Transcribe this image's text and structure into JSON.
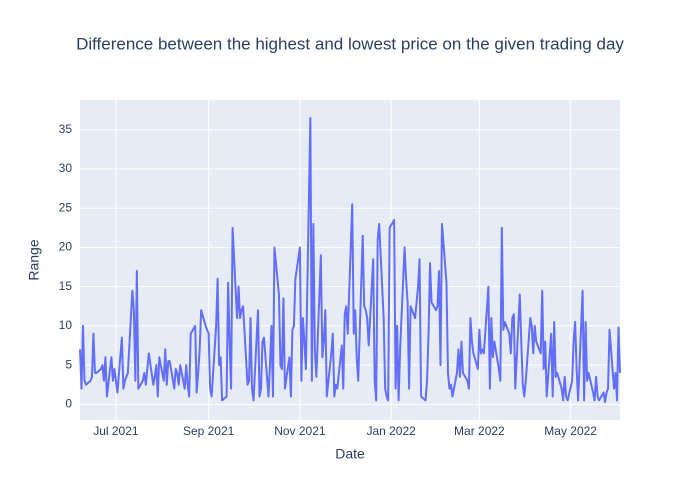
{
  "chart_data": {
    "type": "line",
    "title": "Difference between the highest and lowest price on the given trading day",
    "x_label": "Date",
    "y_label": "Range",
    "color": "#636efa",
    "grid": true,
    "xlim": [
      "2021-06-07",
      "2022-06-03"
    ],
    "xticks": [
      {
        "value": "2021-07-01",
        "label": "Jul 2021"
      },
      {
        "value": "2021-09-01",
        "label": "Sep 2021"
      },
      {
        "value": "2021-11-01",
        "label": "Nov 2021"
      },
      {
        "value": "2022-01-01",
        "label": "Jan 2022"
      },
      {
        "value": "2022-03-01",
        "label": "Mar 2022"
      },
      {
        "value": "2022-05-01",
        "label": "May 2022"
      }
    ],
    "ylim": [
      -2,
      38.8
    ],
    "yticks": [
      0,
      5,
      10,
      15,
      20,
      25,
      30,
      35
    ],
    "x": [
      "2021-06-07",
      "2021-06-08",
      "2021-06-09",
      "2021-06-10",
      "2021-06-11",
      "2021-06-14",
      "2021-06-15",
      "2021-06-16",
      "2021-06-17",
      "2021-06-18",
      "2021-06-21",
      "2021-06-22",
      "2021-06-23",
      "2021-06-24",
      "2021-06-25",
      "2021-06-28",
      "2021-06-29",
      "2021-06-30",
      "2021-07-01",
      "2021-07-02",
      "2021-07-05",
      "2021-07-06",
      "2021-07-07",
      "2021-07-08",
      "2021-07-09",
      "2021-07-12",
      "2021-07-13",
      "2021-07-14",
      "2021-07-15",
      "2021-07-16",
      "2021-07-19",
      "2021-07-20",
      "2021-07-21",
      "2021-07-22",
      "2021-07-23",
      "2021-07-26",
      "2021-07-27",
      "2021-07-28",
      "2021-07-29",
      "2021-07-30",
      "2021-08-02",
      "2021-08-03",
      "2021-08-04",
      "2021-08-05",
      "2021-08-06",
      "2021-08-09",
      "2021-08-10",
      "2021-08-11",
      "2021-08-12",
      "2021-08-13",
      "2021-08-16",
      "2021-08-17",
      "2021-08-18",
      "2021-08-19",
      "2021-08-20",
      "2021-08-23",
      "2021-08-24",
      "2021-08-25",
      "2021-08-26",
      "2021-08-27",
      "2021-08-30",
      "2021-08-31",
      "2021-09-01",
      "2021-09-02",
      "2021-09-03",
      "2021-09-06",
      "2021-09-07",
      "2021-09-08",
      "2021-09-09",
      "2021-09-10",
      "2021-09-13",
      "2021-09-14",
      "2021-09-15",
      "2021-09-16",
      "2021-09-17",
      "2021-09-20",
      "2021-09-21",
      "2021-09-22",
      "2021-09-23",
      "2021-09-24",
      "2021-09-27",
      "2021-09-28",
      "2021-09-29",
      "2021-09-30",
      "2021-10-01",
      "2021-10-04",
      "2021-10-05",
      "2021-10-06",
      "2021-10-07",
      "2021-10-08",
      "2021-10-11",
      "2021-10-12",
      "2021-10-13",
      "2021-10-14",
      "2021-10-15",
      "2021-10-18",
      "2021-10-19",
      "2021-10-20",
      "2021-10-21",
      "2021-10-22",
      "2021-10-25",
      "2021-10-26",
      "2021-10-27",
      "2021-10-28",
      "2021-10-29",
      "2021-11-01",
      "2021-11-02",
      "2021-11-03",
      "2021-11-04",
      "2021-11-05",
      "2021-11-08",
      "2021-11-09",
      "2021-11-10",
      "2021-11-11",
      "2021-11-12",
      "2021-11-15",
      "2021-11-16",
      "2021-11-17",
      "2021-11-18",
      "2021-11-19",
      "2021-11-22",
      "2021-11-23",
      "2021-11-24",
      "2021-11-25",
      "2021-11-26",
      "2021-11-29",
      "2021-11-30",
      "2021-12-01",
      "2021-12-02",
      "2021-12-03",
      "2021-12-06",
      "2021-12-07",
      "2021-12-08",
      "2021-12-09",
      "2021-12-10",
      "2021-12-13",
      "2021-12-14",
      "2021-12-15",
      "2021-12-16",
      "2021-12-17",
      "2021-12-20",
      "2021-12-21",
      "2021-12-22",
      "2021-12-23",
      "2021-12-24",
      "2021-12-27",
      "2021-12-28",
      "2021-12-29",
      "2021-12-30",
      "2021-12-31",
      "2022-01-03",
      "2022-01-04",
      "2022-01-05",
      "2022-01-06",
      "2022-01-07",
      "2022-01-10",
      "2022-01-11",
      "2022-01-12",
      "2022-01-13",
      "2022-01-14",
      "2022-01-17",
      "2022-01-18",
      "2022-01-19",
      "2022-01-20",
      "2022-01-21",
      "2022-01-24",
      "2022-01-25",
      "2022-01-26",
      "2022-01-27",
      "2022-01-28",
      "2022-01-31",
      "2022-02-01",
      "2022-02-02",
      "2022-02-03",
      "2022-02-04",
      "2022-02-07",
      "2022-02-08",
      "2022-02-09",
      "2022-02-10",
      "2022-02-11",
      "2022-02-14",
      "2022-02-15",
      "2022-02-16",
      "2022-02-17",
      "2022-02-18",
      "2022-02-21",
      "2022-02-22",
      "2022-02-23",
      "2022-02-24",
      "2022-02-25",
      "2022-02-28",
      "2022-03-01",
      "2022-03-02",
      "2022-03-03",
      "2022-03-04",
      "2022-03-07",
      "2022-03-08",
      "2022-03-09",
      "2022-03-10",
      "2022-03-11",
      "2022-03-14",
      "2022-03-15",
      "2022-03-16",
      "2022-03-17",
      "2022-03-18",
      "2022-03-21",
      "2022-03-22",
      "2022-03-23",
      "2022-03-24",
      "2022-03-25",
      "2022-03-28",
      "2022-03-29",
      "2022-03-30",
      "2022-03-31",
      "2022-04-01",
      "2022-04-04",
      "2022-04-05",
      "2022-04-06",
      "2022-04-07",
      "2022-04-08",
      "2022-04-11",
      "2022-04-12",
      "2022-04-13",
      "2022-04-14",
      "2022-04-15",
      "2022-04-18",
      "2022-04-19",
      "2022-04-20",
      "2022-04-21",
      "2022-04-22",
      "2022-04-25",
      "2022-04-26",
      "2022-04-27",
      "2022-04-28",
      "2022-04-29",
      "2022-05-02",
      "2022-05-03",
      "2022-05-04",
      "2022-05-05",
      "2022-05-06",
      "2022-05-09",
      "2022-05-10",
      "2022-05-11",
      "2022-05-12",
      "2022-05-13",
      "2022-05-16",
      "2022-05-17",
      "2022-05-18",
      "2022-05-19",
      "2022-05-20",
      "2022-05-23",
      "2022-05-24",
      "2022-05-25",
      "2022-05-26",
      "2022-05-27",
      "2022-05-30",
      "2022-05-31",
      "2022-06-01",
      "2022-06-02",
      "2022-06-03"
    ],
    "values": [
      7,
      2,
      10,
      3,
      2.5,
      3,
      3.5,
      9,
      4,
      4,
      4.5,
      5,
      3,
      6,
      1,
      6,
      3,
      4.5,
      3,
      1.5,
      8.5,
      2,
      3,
      3.5,
      4,
      14.5,
      12,
      3,
      17,
      2,
      3,
      4,
      2.5,
      4.5,
      6.5,
      2.5,
      3.5,
      5,
      1,
      6,
      3,
      7,
      2.5,
      5.5,
      5.5,
      2,
      4.5,
      4,
      2.5,
      5,
      2,
      5,
      2.5,
      1,
      9,
      10,
      1.5,
      4,
      7,
      12,
      10,
      9.5,
      9,
      2,
      1,
      10,
      16,
      5,
      6,
      0.5,
      1,
      15.5,
      8,
      2,
      22.5,
      11,
      15,
      11,
      12,
      12.5,
      2.5,
      3,
      11,
      2,
      0.5,
      12,
      1,
      2,
      8,
      8.5,
      1,
      5,
      10,
      1,
      20,
      14,
      5,
      4.5,
      13.5,
      2,
      6,
      1,
      9.5,
      10,
      16,
      20,
      3,
      11,
      8,
      4.5,
      36.5,
      3,
      23,
      7,
      3.5,
      19,
      6,
      8,
      12,
      1,
      6.5,
      9,
      1,
      2.5,
      2,
      7.5,
      2,
      11.5,
      12.5,
      9,
      25.5,
      9,
      12,
      6,
      3,
      21.5,
      12.5,
      12,
      11,
      7.5,
      18.5,
      3,
      0.5,
      21,
      23,
      11,
      2,
      1,
      0.5,
      22.5,
      23.5,
      2,
      10,
      0.5,
      7,
      20,
      16,
      13,
      2,
      12.5,
      11,
      13,
      15,
      18.5,
      1,
      0.5,
      3,
      9,
      18,
      13,
      12,
      12.5,
      17,
      5,
      23,
      15.5,
      4,
      2,
      2.5,
      1,
      4,
      7,
      3.5,
      8,
      4,
      3,
      2,
      11,
      8,
      6.5,
      4.5,
      9.5,
      6.5,
      7,
      6.5,
      15,
      2,
      11,
      6,
      8,
      4.5,
      3,
      22.5,
      9.5,
      10.5,
      9,
      6.5,
      11,
      11.5,
      2,
      14,
      8,
      2.5,
      1,
      3,
      11,
      10,
      6.5,
      10,
      8,
      6.5,
      14.5,
      4.5,
      8,
      1,
      9,
      1,
      10.5,
      3.5,
      4,
      2,
      0.5,
      3.5,
      1,
      0.5,
      3,
      8,
      10.5,
      4.5,
      0.5,
      14.5,
      0.5,
      10.5,
      3,
      4,
      1.5,
      0.5,
      3.5,
      1,
      0.5,
      1.5,
      0.3,
      1.5,
      2,
      9.5,
      2,
      4,
      0.5,
      9.8,
      4
    ]
  }
}
